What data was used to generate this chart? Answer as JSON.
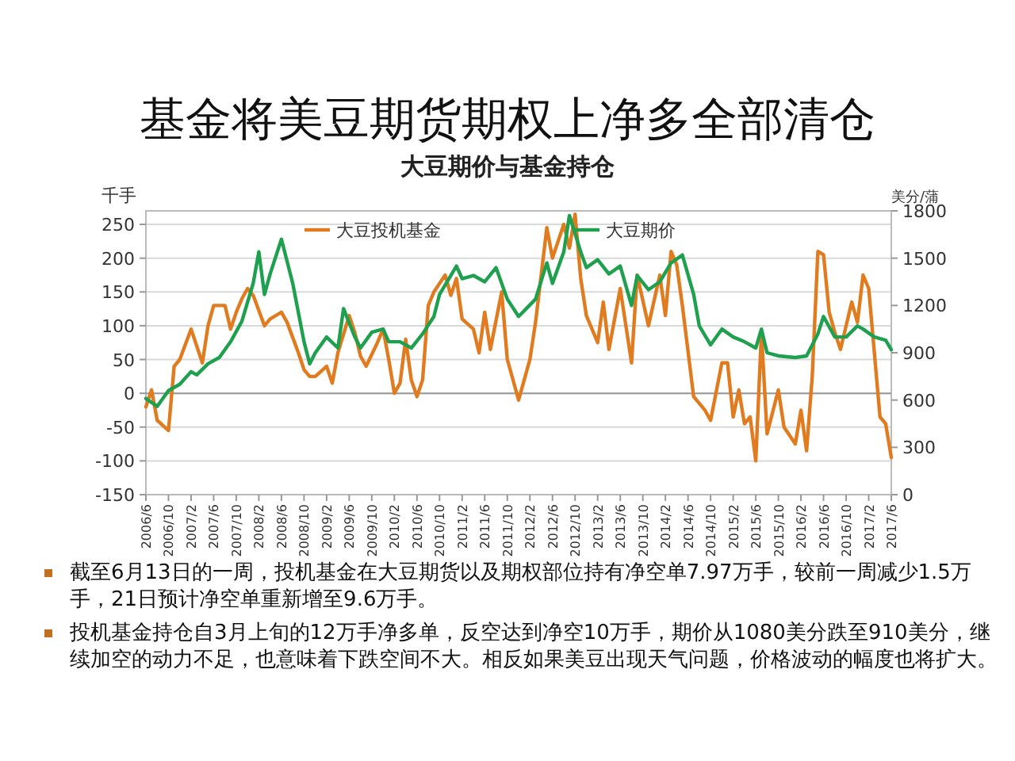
{
  "chart_data": {
    "type": "line",
    "title": "基金将美豆期货期权上净多全部清仓",
    "subtitle": "大豆期价与基金持仓",
    "ylabel": "千手",
    "y2label": "美分/蒲",
    "series": [
      {
        "name": "大豆投机基金",
        "color": "#e07b1f",
        "axis": "y",
        "x": [
          "2006-06",
          "2006-07",
          "2006-08",
          "2006-10",
          "2006-11",
          "2006-12",
          "2007-02",
          "2007-03",
          "2007-04",
          "2007-05",
          "2007-06",
          "2007-08",
          "2007-09",
          "2007-10",
          "2007-11",
          "2007-12",
          "2008-01",
          "2008-03",
          "2008-04",
          "2008-06",
          "2008-07",
          "2008-09",
          "2008-10",
          "2008-11",
          "2008-12",
          "2009-02",
          "2009-03",
          "2009-04",
          "2009-06",
          "2009-07",
          "2009-08",
          "2009-09",
          "2009-11",
          "2009-12",
          "2010-01",
          "2010-02",
          "2010-03",
          "2010-04",
          "2010-05",
          "2010-06",
          "2010-07",
          "2010-08",
          "2010-09",
          "2010-11",
          "2010-12",
          "2011-01",
          "2011-02",
          "2011-04",
          "2011-05",
          "2011-06",
          "2011-07",
          "2011-09",
          "2011-10",
          "2011-12",
          "2012-01",
          "2012-02",
          "2012-03",
          "2012-05",
          "2012-06",
          "2012-08",
          "2012-09",
          "2012-10",
          "2012-11",
          "2012-12",
          "2013-02",
          "2013-03",
          "2013-04",
          "2013-06",
          "2013-08",
          "2013-09",
          "2013-11",
          "2014-01",
          "2014-02",
          "2014-03",
          "2014-04",
          "2014-05",
          "2014-07",
          "2014-09",
          "2014-10",
          "2014-12",
          "2015-01",
          "2015-02",
          "2015-03",
          "2015-04",
          "2015-05",
          "2015-06",
          "2015-07",
          "2015-08",
          "2015-10",
          "2015-11",
          "2016-01",
          "2016-02",
          "2016-03",
          "2016-04",
          "2016-05",
          "2016-06",
          "2016-07",
          "2016-08",
          "2016-09",
          "2016-11",
          "2016-12",
          "2017-01",
          "2017-02",
          "2017-04",
          "2017-05",
          "2017-06"
        ],
        "values": [
          -20,
          5,
          -40,
          -55,
          40,
          50,
          95,
          70,
          45,
          100,
          130,
          130,
          95,
          120,
          140,
          155,
          145,
          100,
          110,
          120,
          105,
          60,
          35,
          25,
          25,
          40,
          15,
          60,
          115,
          90,
          55,
          40,
          75,
          95,
          50,
          0,
          15,
          80,
          20,
          -5,
          20,
          130,
          150,
          175,
          145,
          170,
          110,
          95,
          60,
          120,
          65,
          150,
          50,
          -10,
          20,
          50,
          105,
          245,
          200,
          250,
          215,
          265,
          170,
          115,
          75,
          135,
          65,
          155,
          45,
          175,
          100,
          175,
          115,
          210,
          190,
          130,
          -5,
          -25,
          -40,
          45,
          45,
          -35,
          5,
          -45,
          -35,
          -100,
          90,
          -60,
          5,
          -50,
          -75,
          -25,
          -85,
          25,
          210,
          205,
          120,
          90,
          65,
          135,
          105,
          175,
          155,
          -35,
          -45,
          -95
        ]
      },
      {
        "name": "大豆期价",
        "color": "#1fa04f",
        "axis": "y2",
        "x": [
          "2006-06",
          "2006-08",
          "2006-10",
          "2006-12",
          "2007-02",
          "2007-03",
          "2007-05",
          "2007-07",
          "2007-09",
          "2007-11",
          "2008-01",
          "2008-02",
          "2008-03",
          "2008-04",
          "2008-06",
          "2008-08",
          "2008-10",
          "2008-11",
          "2008-12",
          "2009-02",
          "2009-04",
          "2009-05",
          "2009-07",
          "2009-08",
          "2009-10",
          "2009-12",
          "2010-01",
          "2010-03",
          "2010-05",
          "2010-07",
          "2010-09",
          "2010-10",
          "2011-01",
          "2011-02",
          "2011-04",
          "2011-06",
          "2011-08",
          "2011-10",
          "2011-12",
          "2012-03",
          "2012-05",
          "2012-06",
          "2012-08",
          "2012-09",
          "2012-11",
          "2012-12",
          "2013-02",
          "2013-04",
          "2013-06",
          "2013-08",
          "2013-09",
          "2013-11",
          "2014-01",
          "2014-03",
          "2014-05",
          "2014-07",
          "2014-08",
          "2014-10",
          "2014-12",
          "2015-02",
          "2015-04",
          "2015-06",
          "2015-07",
          "2015-08",
          "2015-10",
          "2016-01",
          "2016-03",
          "2016-05",
          "2016-06",
          "2016-08",
          "2016-10",
          "2016-12",
          "2017-01",
          "2017-03",
          "2017-05",
          "2017-06"
        ],
        "values": [
          610,
          560,
          660,
          700,
          780,
          760,
          830,
          870,
          970,
          1100,
          1340,
          1540,
          1270,
          1400,
          1620,
          1340,
          970,
          830,
          900,
          1000,
          930,
          1180,
          1000,
          930,
          1030,
          1050,
          970,
          970,
          930,
          1020,
          1130,
          1270,
          1450,
          1370,
          1390,
          1350,
          1440,
          1240,
          1130,
          1240,
          1470,
          1340,
          1540,
          1770,
          1540,
          1440,
          1490,
          1400,
          1450,
          1200,
          1390,
          1300,
          1350,
          1470,
          1520,
          1270,
          1070,
          950,
          1050,
          1000,
          970,
          930,
          1050,
          900,
          880,
          870,
          880,
          1020,
          1130,
          1000,
          1000,
          1070,
          1050,
          1000,
          980,
          920
        ]
      }
    ],
    "xlim": [
      "2006-06",
      "2017-06"
    ],
    "xticks": [
      {
        "value": "2006-06",
        "label": "2006/6"
      },
      {
        "value": "2006-10",
        "label": "2006/10"
      },
      {
        "value": "2007-02",
        "label": "2007/2"
      },
      {
        "value": "2007-06",
        "label": "2007/6"
      },
      {
        "value": "2007-10",
        "label": "2007/10"
      },
      {
        "value": "2008-02",
        "label": "2008/2"
      },
      {
        "value": "2008-06",
        "label": "2008/6"
      },
      {
        "value": "2008-10",
        "label": "2008/10"
      },
      {
        "value": "2009-02",
        "label": "2009/2"
      },
      {
        "value": "2009-06",
        "label": "2009/6"
      },
      {
        "value": "2009-10",
        "label": "2009/10"
      },
      {
        "value": "2010-02",
        "label": "2010/2"
      },
      {
        "value": "2010-06",
        "label": "2010/6"
      },
      {
        "value": "2010-10",
        "label": "2010/10"
      },
      {
        "value": "2011-02",
        "label": "2011/2"
      },
      {
        "value": "2011-06",
        "label": "2011/6"
      },
      {
        "value": "2011-10",
        "label": "2011/10"
      },
      {
        "value": "2012-02",
        "label": "2012/2"
      },
      {
        "value": "2012-06",
        "label": "2012/6"
      },
      {
        "value": "2012-10",
        "label": "2012/10"
      },
      {
        "value": "2013-02",
        "label": "2013/2"
      },
      {
        "value": "2013-06",
        "label": "2013/6"
      },
      {
        "value": "2013-10",
        "label": "2013/10"
      },
      {
        "value": "2014-02",
        "label": "2014/2"
      },
      {
        "value": "2014-06",
        "label": "2014/6"
      },
      {
        "value": "2014-10",
        "label": "2014/10"
      },
      {
        "value": "2015-02",
        "label": "2015/2"
      },
      {
        "value": "2015-06",
        "label": "2015/6"
      },
      {
        "value": "2015-10",
        "label": "2015/10"
      },
      {
        "value": "2016-02",
        "label": "2016/2"
      },
      {
        "value": "2016-06",
        "label": "2016/6"
      },
      {
        "value": "2016-10",
        "label": "2016/10"
      },
      {
        "value": "2017-02",
        "label": "2017/2"
      },
      {
        "value": "2017-06",
        "label": "2017/6"
      }
    ],
    "ylim": [
      -150,
      270
    ],
    "yticks": [
      -150,
      -100,
      -50,
      0,
      50,
      100,
      150,
      200,
      250
    ],
    "y2lim": [
      0,
      1800
    ],
    "y2ticks": [
      0,
      300,
      600,
      900,
      1200,
      1500,
      1800
    ],
    "grid": "y",
    "legend": "top",
    "annotations": [
      "截至6月13日的一周，投机基金在大豆期货以及期权部位持有净空单7.97万手，较前一周减少1.5万手，21日预计净空单重新增至9.6万手。",
      "投机基金持仓自3月上旬的12万手净多单，反空达到净空10万手，期价从1080美分跌至910美分，继续加空的动力不足，也意味着下跌空间不大。相反如果美豆出现天气问题，价格波动的幅度也将扩大。"
    ]
  }
}
